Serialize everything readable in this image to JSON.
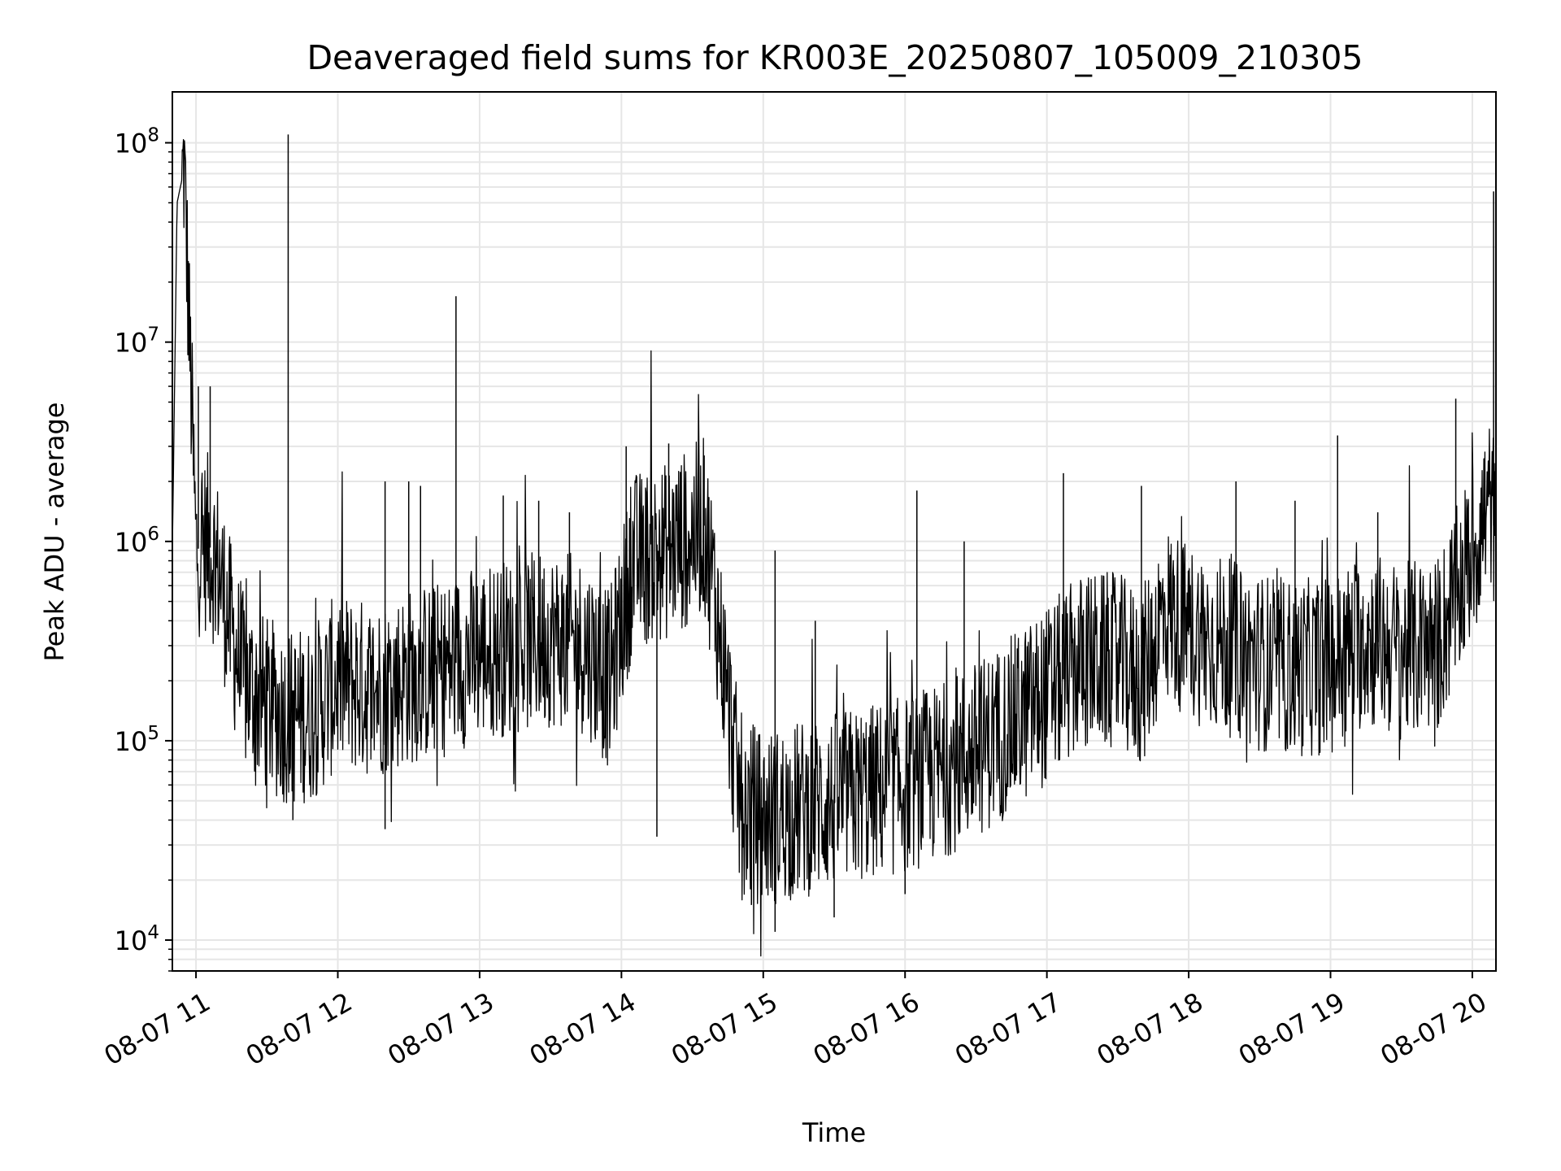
{
  "chart_data": {
    "type": "line",
    "title": "Deaveraged field sums for KR003E_20250807_105009_210305",
    "xlabel": "Time",
    "ylabel": "Peak ADU - average",
    "yscale": "log",
    "ylim": [
      7000,
      180000000
    ],
    "xlim": [
      "08-07 10:50",
      "08-07 20:10"
    ],
    "grid": true,
    "line_color": "#000000",
    "grid_color": "#e6e6e6",
    "x_ticks": [
      "08-07 11",
      "08-07 12",
      "08-07 13",
      "08-07 14",
      "08-07 15",
      "08-07 16",
      "08-07 17",
      "08-07 18",
      "08-07 19",
      "08-07 20"
    ],
    "y_ticks": [
      {
        "value": 10000,
        "base": "10",
        "exp": "4"
      },
      {
        "value": 100000,
        "base": "10",
        "exp": "5"
      },
      {
        "value": 1000000,
        "base": "10",
        "exp": "6"
      },
      {
        "value": 10000000,
        "base": "10",
        "exp": "7"
      },
      {
        "value": 100000000,
        "base": "10",
        "exp": "8"
      }
    ],
    "series": [
      {
        "x": [
          "08-07 10:50",
          "08-07 10:52",
          "08-07 10:54",
          "08-07 10:55",
          "08-07 11:00",
          "08-07 11:05",
          "08-07 11:10",
          "08-07 11:15",
          "08-07 11:20",
          "08-07 11:30",
          "08-07 11:40",
          "08-07 11:50",
          "08-07 12:00",
          "08-07 12:15",
          "08-07 12:30",
          "08-07 12:45",
          "08-07 13:00",
          "08-07 13:15",
          "08-07 13:30",
          "08-07 13:45",
          "08-07 13:55",
          "08-07 14:05",
          "08-07 14:20",
          "08-07 14:35",
          "08-07 14:40",
          "08-07 14:50",
          "08-07 15:00",
          "08-07 15:15",
          "08-07 15:30",
          "08-07 15:45",
          "08-07 16:00",
          "08-07 16:15",
          "08-07 16:30",
          "08-07 16:45",
          "08-07 17:00",
          "08-07 17:15",
          "08-07 17:30",
          "08-07 17:40",
          "08-07 17:50",
          "08-07 18:00",
          "08-07 18:15",
          "08-07 18:30",
          "08-07 18:45",
          "08-07 19:00",
          "08-07 19:15",
          "08-07 19:30",
          "08-07 19:45",
          "08-07 19:55",
          "08-07 20:05",
          "08-07 20:08",
          "08-07 20:10"
        ],
        "y": [
          900000,
          50000000,
          65000000,
          75000000,
          900000,
          1000000,
          700000,
          350000,
          200000,
          150000,
          130000,
          140000,
          200000,
          180000,
          210000,
          230000,
          280000,
          300000,
          330000,
          300000,
          200000,
          800000,
          900000,
          1200000,
          500000,
          50000,
          40000,
          45000,
          50000,
          55000,
          60000,
          70000,
          90000,
          120000,
          170000,
          250000,
          250000,
          200000,
          450000,
          350000,
          300000,
          250000,
          230000,
          240000,
          330000,
          280000,
          300000,
          600000,
          1300000,
          1600000,
          900000
        ]
      }
    ],
    "spikes": [
      {
        "x": "08-07 11:39",
        "y": 110000000
      },
      {
        "x": "08-07 12:50",
        "y": 17000000
      },
      {
        "x": "08-07 20:09",
        "y": 57000000
      },
      {
        "x": "08-07 11:06",
        "y": 6000000
      },
      {
        "x": "08-07 11:01",
        "y": 6000000
      },
      {
        "x": "08-07 19:53",
        "y": 5200000
      },
      {
        "x": "08-07 19:03",
        "y": 3400000
      },
      {
        "x": "08-07 14:20",
        "y": 3100000
      },
      {
        "x": "08-07 14:02",
        "y": 3000000
      },
      {
        "x": "08-07 14:35",
        "y": 2700000
      },
      {
        "x": "08-07 16:05",
        "y": 1800000
      },
      {
        "x": "08-07 17:07",
        "y": 2200000
      },
      {
        "x": "08-07 17:40",
        "y": 1900000
      },
      {
        "x": "08-07 18:20",
        "y": 2000000
      },
      {
        "x": "08-07 12:20",
        "y": 2000000
      },
      {
        "x": "08-07 12:30",
        "y": 2000000
      },
      {
        "x": "08-07 12:35",
        "y": 1900000
      },
      {
        "x": "08-07 13:10",
        "y": 1700000
      },
      {
        "x": "08-07 13:25",
        "y": 1600000
      },
      {
        "x": "08-07 13:38",
        "y": 1400000
      },
      {
        "x": "08-07 18:45",
        "y": 1600000
      },
      {
        "x": "08-07 19:20",
        "y": 1400000
      },
      {
        "x": "08-07 15:05",
        "y": 900000
      },
      {
        "x": "08-07 15:22",
        "y": 400000
      },
      {
        "x": "08-07 16:25",
        "y": 1000000
      },
      {
        "x": "08-07 15:05",
        "y": 11000
      },
      {
        "x": "08-07 15:30",
        "y": 13000
      },
      {
        "x": "08-07 14:55",
        "y": 15000
      },
      {
        "x": "08-07 12:20",
        "y": 36000
      },
      {
        "x": "08-07 14:15",
        "y": 33000
      },
      {
        "x": "08-07 11:41",
        "y": 40000
      },
      {
        "x": "08-07 16:00",
        "y": 17000
      }
    ]
  }
}
